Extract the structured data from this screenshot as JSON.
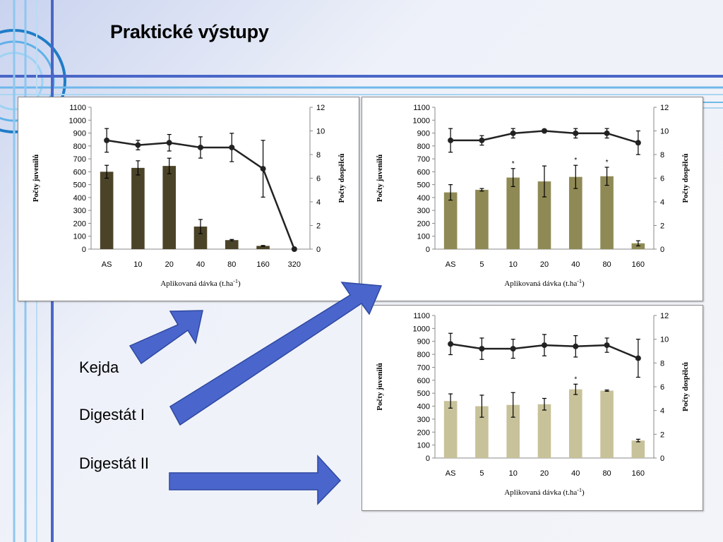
{
  "slide": {
    "title": "Praktické výstupy"
  },
  "labels": [
    "Kejda",
    "Digestát I",
    "Digestát II"
  ],
  "colors": {
    "line": "#222222",
    "kejda_bar": "#4b4328",
    "digestat1_bar": "#8f8a55",
    "digestat2_bar": "#c8c29a",
    "arrow": "#4a66cc"
  },
  "chart_data": [
    {
      "type": "bar",
      "name": "Kejda",
      "categories": [
        "AS",
        "10",
        "20",
        "40",
        "80",
        "160",
        "320"
      ],
      "xlabel": "Aplikovaná dávka (t.ha",
      "xlabel_sup": "-1",
      "xlabel_end": ")",
      "ylabel": "Počty juvenilů",
      "y2label": "Počty dospělců",
      "ylim": [
        0,
        1100
      ],
      "y2lim": [
        0,
        12
      ],
      "yticks": [
        0,
        100,
        200,
        300,
        400,
        500,
        600,
        700,
        800,
        900,
        1000,
        1100
      ],
      "y2ticks": [
        0,
        2,
        4,
        6,
        8,
        10,
        12
      ],
      "series": [
        {
          "kind": "bar",
          "values": [
            600,
            630,
            645,
            175,
            70,
            25,
            null
          ],
          "errors": [
            50,
            55,
            60,
            55,
            5,
            3,
            null
          ],
          "stars": [
            false,
            false,
            false,
            false,
            false,
            false,
            false
          ]
        },
        {
          "kind": "line",
          "values": [
            9.2,
            8.8,
            9.0,
            8.6,
            8.6,
            6.8,
            0
          ],
          "errors": [
            1.0,
            0.4,
            0.7,
            0.9,
            1.2,
            2.4,
            0
          ]
        }
      ]
    },
    {
      "type": "bar",
      "name": "Digestát I",
      "categories": [
        "AS",
        "5",
        "10",
        "20",
        "40",
        "80",
        "160"
      ],
      "xlabel": "Aplikovaná dávka (t.ha",
      "xlabel_sup": "-1",
      "xlabel_end": ")",
      "ylabel": "Počty juvenilů",
      "y2label": "Počty dospělců",
      "ylim": [
        0,
        1100
      ],
      "y2lim": [
        0,
        12
      ],
      "yticks": [
        0,
        100,
        200,
        300,
        400,
        500,
        600,
        700,
        800,
        900,
        1000,
        1100
      ],
      "y2ticks": [
        0,
        2,
        4,
        6,
        8,
        10,
        12
      ],
      "series": [
        {
          "kind": "bar",
          "values": [
            440,
            460,
            555,
            525,
            560,
            565,
            45
          ],
          "errors": [
            60,
            10,
            70,
            120,
            90,
            70,
            20
          ],
          "stars": [
            false,
            false,
            true,
            false,
            true,
            true,
            false
          ]
        },
        {
          "kind": "line",
          "values": [
            9.2,
            9.2,
            9.8,
            10.0,
            9.8,
            9.8,
            9.0
          ],
          "errors": [
            1.0,
            0.4,
            0.4,
            0.1,
            0.4,
            0.4,
            1.0
          ]
        }
      ]
    },
    {
      "type": "bar",
      "name": "Digestát II",
      "categories": [
        "AS",
        "5",
        "10",
        "20",
        "40",
        "80",
        "160"
      ],
      "xlabel": "Aplikovaná dávka (t.ha",
      "xlabel_sup": "-1",
      "xlabel_end": ")",
      "ylabel": "Počty juvenilů",
      "y2label": "Počty dospělců",
      "ylim": [
        0,
        1100
      ],
      "y2lim": [
        0,
        12
      ],
      "yticks": [
        0,
        100,
        200,
        300,
        400,
        500,
        600,
        700,
        800,
        900,
        1000,
        1100
      ],
      "y2ticks": [
        0,
        2,
        4,
        6,
        8,
        10,
        12
      ],
      "series": [
        {
          "kind": "bar",
          "values": [
            440,
            400,
            410,
            415,
            530,
            520,
            135
          ],
          "errors": [
            55,
            85,
            95,
            45,
            40,
            5,
            10
          ],
          "stars": [
            false,
            false,
            false,
            false,
            true,
            false,
            false
          ]
        },
        {
          "kind": "line",
          "values": [
            9.6,
            9.2,
            9.2,
            9.5,
            9.4,
            9.5,
            8.4
          ],
          "errors": [
            0.9,
            0.9,
            0.8,
            0.9,
            0.9,
            0.6,
            1.6
          ]
        }
      ]
    }
  ]
}
